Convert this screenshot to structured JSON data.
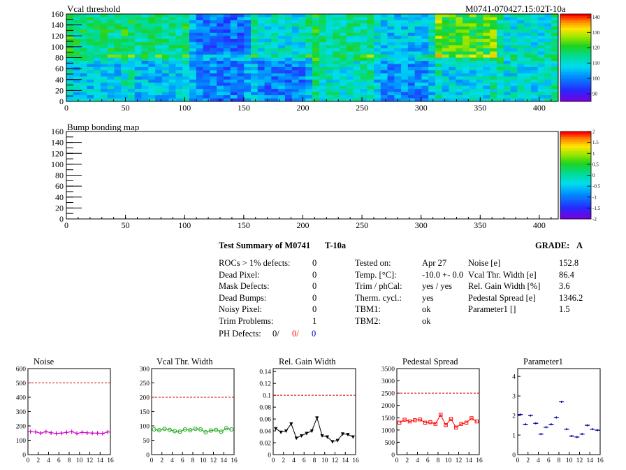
{
  "module_id": "M0741-070427.15:02T-10a",
  "colors": {
    "red": "#ff0000",
    "blue": "#0000cc",
    "magenta": "#cc00cc",
    "green": "#22aa22",
    "black": "#000000",
    "navy": "#0000aa"
  },
  "chart_data": [
    {
      "type": "heatmap",
      "title": "Vcal threshold",
      "x_ticks": [
        "0",
        "50",
        "100",
        "150",
        "200",
        "250",
        "300",
        "350",
        "400"
      ],
      "y_ticks": [
        "0",
        "20",
        "40",
        "60",
        "80",
        "100",
        "120",
        "140",
        "160"
      ],
      "xlim": [
        0,
        416
      ],
      "ylim": [
        0,
        160
      ],
      "roc_blocks": 16,
      "roc_mean_rows": {
        "top": [
          116,
          115,
          99,
          110,
          114,
          106,
          122,
          110
        ],
        "bottom": [
          107,
          106,
          100,
          100,
          111,
          102,
          108,
          109
        ]
      },
      "z_ticks": [
        "90",
        "100",
        "110",
        "120",
        "130",
        "140"
      ],
      "zlim": [
        85,
        142
      ]
    },
    {
      "type": "heatmap",
      "title": "Bump bonding map",
      "x_ticks": [
        "0",
        "50",
        "100",
        "150",
        "200",
        "250",
        "300",
        "350",
        "400"
      ],
      "y_ticks": [
        "0",
        "20",
        "40",
        "60",
        "80",
        "100",
        "120",
        "140",
        "160"
      ],
      "xlim": [
        0,
        416
      ],
      "ylim": [
        0,
        160
      ],
      "z_ticks": [
        "-2",
        "-1.5",
        "-1",
        "-0.5",
        "0",
        "0.5",
        "1",
        "1.5",
        "2"
      ],
      "zlim": [
        -2,
        2
      ]
    },
    {
      "type": "line",
      "title": "Noise",
      "color": "magenta",
      "marker": "plus",
      "x": [
        0,
        1,
        2,
        3,
        4,
        5,
        6,
        7,
        8,
        9,
        10,
        11,
        12,
        13,
        14,
        15
      ],
      "values": [
        160,
        158,
        150,
        160,
        152,
        148,
        150,
        155,
        160,
        148,
        155,
        152,
        150,
        150,
        148,
        158
      ],
      "threshold": 500,
      "ylim": [
        0,
        600
      ],
      "xlim": [
        0,
        16
      ],
      "y_ticks": [
        "0",
        "100",
        "200",
        "300",
        "400",
        "500",
        "600"
      ],
      "x_ticks": [
        "0",
        "2",
        "4",
        "6",
        "8",
        "10",
        "12",
        "14",
        "16"
      ]
    },
    {
      "type": "line",
      "title": "Vcal Thr. Width",
      "color": "green",
      "marker": "circle",
      "x": [
        0,
        1,
        2,
        3,
        4,
        5,
        6,
        7,
        8,
        9,
        10,
        11,
        12,
        13,
        14,
        15
      ],
      "values": [
        88,
        85,
        90,
        86,
        82,
        80,
        88,
        85,
        90,
        88,
        78,
        84,
        86,
        80,
        92,
        88
      ],
      "threshold": 200,
      "ylim": [
        0,
        300
      ],
      "xlim": [
        0,
        16
      ],
      "y_ticks": [
        "0",
        "50",
        "100",
        "150",
        "200",
        "250",
        "300"
      ],
      "x_ticks": [
        "0",
        "2",
        "4",
        "6",
        "8",
        "10",
        "12",
        "14",
        "16"
      ]
    },
    {
      "type": "line",
      "title": "Rel. Gain Width",
      "color": "black",
      "marker": "triangle",
      "x": [
        0,
        1,
        2,
        3,
        4,
        5,
        6,
        7,
        8,
        9,
        10,
        11,
        12,
        13,
        14,
        15
      ],
      "values": [
        0.044,
        0.038,
        0.04,
        0.052,
        0.028,
        0.032,
        0.036,
        0.04,
        0.062,
        0.032,
        0.03,
        0.022,
        0.024,
        0.035,
        0.034,
        0.03
      ],
      "threshold": 0.1,
      "ylim": [
        0,
        0.145
      ],
      "xlim": [
        0,
        16
      ],
      "y_ticks": [
        "0",
        "0.02",
        "0.04",
        "0.06",
        "0.08",
        "0.1",
        "0.12",
        "0.14"
      ],
      "x_ticks": [
        "0",
        "2",
        "4",
        "6",
        "8",
        "10",
        "12",
        "14",
        "16"
      ]
    },
    {
      "type": "line",
      "title": "Pedestal Spread",
      "color": "red",
      "marker": "square",
      "x": [
        0,
        1,
        2,
        3,
        4,
        5,
        6,
        7,
        8,
        9,
        10,
        11,
        12,
        13,
        14,
        15
      ],
      "values": [
        1300,
        1420,
        1350,
        1400,
        1430,
        1300,
        1320,
        1250,
        1620,
        1200,
        1450,
        1100,
        1250,
        1300,
        1480,
        1350
      ],
      "threshold": 2500,
      "ylim": [
        0,
        3500
      ],
      "xlim": [
        0,
        16
      ],
      "y_ticks": [
        "0",
        "500",
        "1000",
        "1500",
        "2000",
        "2500",
        "3000",
        "3500"
      ],
      "x_ticks": [
        "0",
        "2",
        "4",
        "6",
        "8",
        "10",
        "12",
        "14",
        "16"
      ]
    },
    {
      "type": "scatter",
      "title": "Parameter1",
      "color": "navy",
      "marker": "hbar",
      "x": [
        0,
        1,
        2,
        3,
        4,
        5,
        6,
        7,
        8,
        9,
        10,
        11,
        12,
        13,
        14,
        15
      ],
      "values": [
        2.05,
        1.55,
        2.0,
        1.6,
        1.05,
        1.4,
        1.55,
        1.9,
        2.7,
        1.3,
        0.95,
        0.9,
        1.05,
        1.5,
        1.3,
        1.25
      ],
      "ylim": [
        0,
        4.4
      ],
      "xlim": [
        0,
        16
      ],
      "y_ticks": [
        "0",
        "1",
        "2",
        "3",
        "4"
      ],
      "x_ticks": [
        "0",
        "2",
        "4",
        "6",
        "8",
        "10",
        "12",
        "14",
        "16"
      ]
    }
  ],
  "summary": {
    "title": "Test Summary of M0741",
    "temp_tag": "T-10a",
    "grade_label": "GRADE:",
    "grade": "A",
    "left": [
      {
        "label": "ROCs > 1% defects:",
        "value": "0"
      },
      {
        "label": "Dead Pixel:",
        "value": "0"
      },
      {
        "label": "Mask Defects:",
        "value": "0"
      },
      {
        "label": "Dead Bumps:",
        "value": "0"
      },
      {
        "label": "Noisy Pixel:",
        "value": "0"
      },
      {
        "label": "Trim Problems:",
        "value": "1"
      }
    ],
    "ph_defects": {
      "label": "PH Defects:",
      "v1": "0/",
      "v2": "0/",
      "v3": "0"
    },
    "middle": [
      {
        "label": "Tested on:",
        "value": "Apr 27"
      },
      {
        "label": "Temp. [°C]:",
        "value": "-10.0 +- 0.0"
      },
      {
        "label": "Trim / phCal:",
        "value": "yes / yes"
      },
      {
        "label": "Therm. cycl.:",
        "value": "yes"
      },
      {
        "label": "TBM1:",
        "value": "ok"
      },
      {
        "label": "TBM2:",
        "value": "ok"
      }
    ],
    "right": [
      {
        "label": "Noise [e]",
        "value": "152.8"
      },
      {
        "label": "Vcal Thr. Width [e]",
        "value": "86.4"
      },
      {
        "label": "Rel. Gain Width [%]",
        "value": "3.6"
      },
      {
        "label": "Pedestal Spread [e]",
        "value": "1346.2"
      },
      {
        "label": "Parameter1 []",
        "value": "1.5"
      }
    ]
  }
}
